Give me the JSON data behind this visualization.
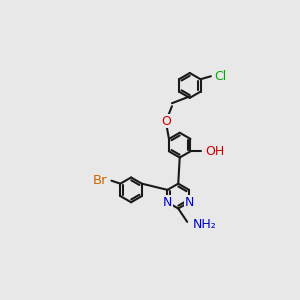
{
  "bg_color": "#e8e8e8",
  "bond_color": "#1a1a1a",
  "bond_width": 1.5,
  "atom_colors": {
    "C": "#1a1a1a",
    "N": "#0000cc",
    "O": "#cc0000",
    "Br": "#cc6600",
    "Cl": "#00aa00",
    "H": "#1a1a1a"
  },
  "font_size": 9
}
